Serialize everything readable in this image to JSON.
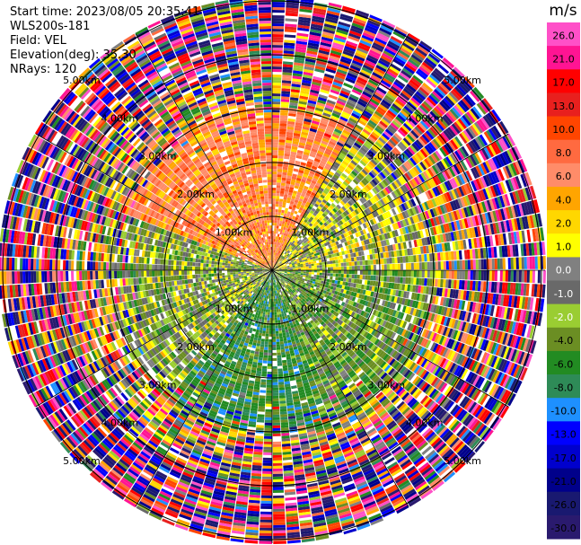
{
  "header": {
    "start_time": "Start time: 2023/08/05 20:35:41",
    "instrument": "WLS200s-181",
    "field": "Field: VEL",
    "elevation": "Elevation(deg): 35.30",
    "nrays": "NRays: 120"
  },
  "colorbar": {
    "unit": "m/s",
    "ticks": [
      "26.0",
      "21.0",
      "17.0",
      "13.0",
      "10.0",
      "8.0",
      "6.0",
      "4.0",
      "2.0",
      "1.0",
      "0.0",
      "-1.0",
      "-2.0",
      "-4.0",
      "-6.0",
      "-8.0",
      "-10.0",
      "-13.0",
      "-17.0",
      "-21.0",
      "-26.0",
      "-30.0"
    ],
    "bins": [
      {
        "lo": 26,
        "hi": 30,
        "color": "#ff50c8"
      },
      {
        "lo": 21,
        "hi": 26,
        "color": "#ff1493"
      },
      {
        "lo": 17,
        "hi": 21,
        "color": "#ff0000"
      },
      {
        "lo": 13,
        "hi": 17,
        "color": "#e8201e"
      },
      {
        "lo": 10,
        "hi": 13,
        "color": "#ff4500"
      },
      {
        "lo": 8,
        "hi": 10,
        "color": "#ff6a40"
      },
      {
        "lo": 6,
        "hi": 8,
        "color": "#ff8c69"
      },
      {
        "lo": 4,
        "hi": 6,
        "color": "#ffa500"
      },
      {
        "lo": 2,
        "hi": 4,
        "color": "#ffd700"
      },
      {
        "lo": 1,
        "hi": 2,
        "color": "#ffff00"
      },
      {
        "lo": 0,
        "hi": 1,
        "color": "#808080"
      },
      {
        "lo": -1,
        "hi": 0,
        "color": "#696969"
      },
      {
        "lo": -2,
        "hi": -1,
        "color": "#9acd32"
      },
      {
        "lo": -4,
        "hi": -2,
        "color": "#6b8e23"
      },
      {
        "lo": -6,
        "hi": -4,
        "color": "#228b22"
      },
      {
        "lo": -8,
        "hi": -6,
        "color": "#2e8b57"
      },
      {
        "lo": -10,
        "hi": -8,
        "color": "#1e90ff"
      },
      {
        "lo": -13,
        "hi": -10,
        "color": "#0000ff"
      },
      {
        "lo": -17,
        "hi": -13,
        "color": "#0000cd"
      },
      {
        "lo": -21,
        "hi": -17,
        "color": "#00008b"
      },
      {
        "lo": -26,
        "hi": -21,
        "color": "#191970"
      },
      {
        "lo": -30,
        "hi": -26,
        "color": "#2a1a6e"
      }
    ]
  },
  "chart_data": {
    "type": "heatmap",
    "projection": "polar PPI (plan position indicator)",
    "field": "VEL",
    "units": "m/s",
    "nrays": 120,
    "elevation_deg": 35.3,
    "range_rings_km": [
      1,
      2,
      3,
      4,
      5
    ],
    "range_ring_labels": [
      "1.00km",
      "2.00km",
      "3.00km",
      "4.00km",
      "5.00km"
    ],
    "spokes_deg": [
      0,
      30,
      60,
      90,
      120,
      150,
      180,
      210,
      240,
      270,
      300,
      330
    ],
    "vmin": -30,
    "vmax": 30,
    "approx_sector_means_ms": [
      {
        "azimuth_deg_range": [
          290,
          30
        ],
        "range_km": [
          0,
          3
        ],
        "mean_ms": 7.0,
        "note": "orange / salmon, upper-left"
      },
      {
        "azimuth_deg_range": [
          30,
          90
        ],
        "range_km": [
          0,
          3
        ],
        "mean_ms": 0.5,
        "note": "gray / yellow, upper-right"
      },
      {
        "azimuth_deg_range": [
          90,
          160
        ],
        "range_km": [
          0,
          3
        ],
        "mean_ms": -2.5,
        "note": "olive / yellow-green, lower-right"
      },
      {
        "azimuth_deg_range": [
          160,
          220
        ],
        "range_km": [
          0,
          3
        ],
        "mean_ms": -5.0,
        "note": "green, bottom"
      },
      {
        "azimuth_deg_range": [
          220,
          290
        ],
        "range_km": [
          0,
          3
        ],
        "mean_ms": -1.0,
        "note": "gray / olive, left"
      },
      {
        "azimuth_deg_range": [
          0,
          360
        ],
        "range_km": [
          3,
          5.3
        ],
        "mean_ms": 0,
        "note": "noisy, full colour spectrum"
      }
    ]
  }
}
